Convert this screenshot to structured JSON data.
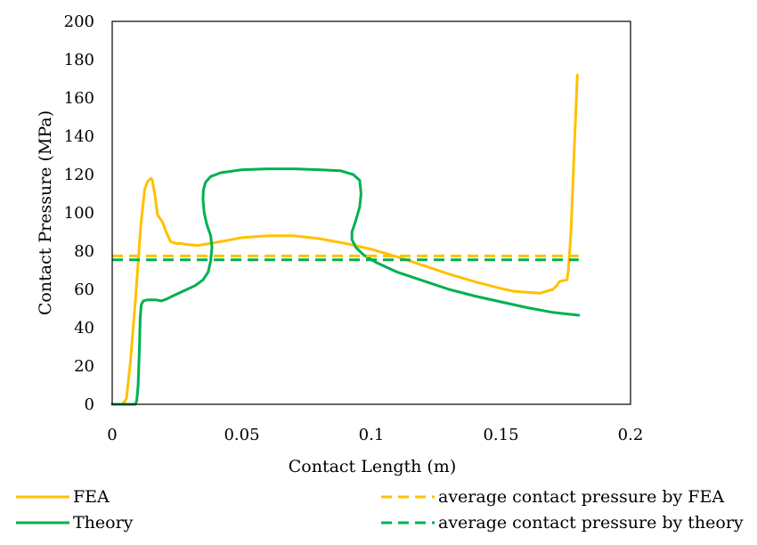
{
  "chart_data": {
    "type": "line",
    "title": "",
    "xlabel": "Contact Length (m)",
    "ylabel": "Contact Pressure (MPa)",
    "xlim": [
      0,
      0.2
    ],
    "ylim": [
      0,
      200
    ],
    "x_ticks": [
      "0",
      "0.05",
      "0.1",
      "0.15",
      "0.2"
    ],
    "y_ticks": [
      "0",
      "20",
      "40",
      "60",
      "80",
      "100",
      "120",
      "140",
      "160",
      "180",
      "200"
    ],
    "grid": false,
    "legend_position": "bottom",
    "series": [
      {
        "name": "FEA",
        "color": "#FFC000",
        "style": "solid",
        "x": [
          0.0,
          0.004,
          0.0055,
          0.007,
          0.009,
          0.011,
          0.0125,
          0.0135,
          0.0145,
          0.015,
          0.0155,
          0.0165,
          0.0175,
          0.0185,
          0.0195,
          0.0205,
          0.0225,
          0.0245,
          0.0265,
          0.0285,
          0.033,
          0.04,
          0.05,
          0.06,
          0.07,
          0.08,
          0.09,
          0.1,
          0.11,
          0.12,
          0.13,
          0.14,
          0.15,
          0.155,
          0.16,
          0.165,
          0.1675,
          0.17,
          0.1715,
          0.1725,
          0.1735,
          0.1755,
          0.176,
          0.177,
          0.1785,
          0.1795
        ],
        "y": [
          0,
          0,
          3,
          22,
          55,
          93,
          112,
          116,
          117.5,
          118,
          117,
          109,
          99,
          97,
          95,
          91,
          85,
          84,
          84,
          83.5,
          83,
          84.5,
          87,
          88,
          88,
          86.5,
          84,
          81,
          77,
          72.5,
          68,
          64,
          60.5,
          59,
          58.5,
          58,
          59,
          60,
          62,
          64,
          64.5,
          65,
          70,
          90,
          140,
          172
        ]
      },
      {
        "name": "Theory",
        "color": "#00B050",
        "style": "solid",
        "x": [
          0.0,
          0.0045,
          0.0055,
          0.007,
          0.009,
          0.0095,
          0.01,
          0.0105,
          0.0108,
          0.0112,
          0.012,
          0.0135,
          0.015,
          0.017,
          0.019,
          0.021,
          0.024,
          0.028,
          0.032,
          0.035,
          0.037,
          0.038,
          0.0385,
          0.038,
          0.0365,
          0.0355,
          0.035,
          0.0352,
          0.036,
          0.038,
          0.042,
          0.05,
          0.06,
          0.07,
          0.08,
          0.088,
          0.093,
          0.0955,
          0.096,
          0.0955,
          0.094,
          0.0925,
          0.0925,
          0.094,
          0.097,
          0.102,
          0.11,
          0.12,
          0.13,
          0.14,
          0.15,
          0.16,
          0.17,
          0.18
        ],
        "y": [
          0,
          0,
          0,
          0,
          0,
          2,
          10,
          30,
          45,
          52,
          54,
          54.5,
          54.5,
          54.5,
          54,
          55,
          57,
          59.5,
          62,
          65,
          69,
          75,
          82,
          88,
          94,
          100,
          107,
          112,
          116,
          119,
          121,
          122.5,
          123,
          123,
          122.5,
          122,
          120,
          117,
          110,
          103,
          96,
          90,
          86,
          82,
          78,
          74,
          69,
          64.5,
          60,
          56.5,
          53.5,
          50.5,
          48,
          46.5
        ]
      },
      {
        "name": "average contact pressure by FEA",
        "color": "#FFC000",
        "style": "dashed",
        "x": [
          0,
          0.18
        ],
        "y": [
          77.5,
          77.5
        ]
      },
      {
        "name": "average contact pressure by theory",
        "color": "#00B050",
        "style": "dashed",
        "x": [
          0,
          0.18
        ],
        "y": [
          75.5,
          75.5
        ]
      }
    ]
  }
}
